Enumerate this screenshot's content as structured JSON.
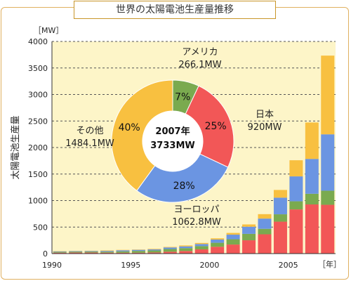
{
  "colors": {
    "japan": "#f25757",
    "usa": "#7aaa4f",
    "europe": "#6b95e2",
    "other": "#f8c040",
    "plot_bg": "#fdf5c8",
    "frame": "#e0b060"
  },
  "chart_data": {
    "type": "bar",
    "title": "世界の太陽電池生産量推移",
    "ylabel": "太陽電池生産量",
    "yunit": "［MW］",
    "xunit": "［年］",
    "ylim": [
      0,
      4000
    ],
    "yticks": [
      0,
      500,
      1000,
      1500,
      2000,
      2500,
      3000,
      3500,
      4000
    ],
    "xtick_labels": [
      "1990",
      "1995",
      "2000",
      "2005"
    ],
    "grid": true,
    "categories": [
      "1990",
      "1991",
      "1992",
      "1993",
      "1994",
      "1995",
      "1996",
      "1997",
      "1998",
      "1999",
      "2000",
      "2001",
      "2002",
      "2003",
      "2004",
      "2005",
      "2006",
      "2007"
    ],
    "series": [
      {
        "key": "japan",
        "values": [
          17,
          19,
          19,
          17,
          16,
          16,
          21,
          35,
          49,
          80,
          129,
          171,
          251,
          364,
          602,
          833,
          927,
          920
        ]
      },
      {
        "key": "usa",
        "values": [
          15,
          17,
          18,
          18,
          26,
          35,
          39,
          51,
          54,
          61,
          75,
          100,
          121,
          103,
          139,
          153,
          201,
          266
        ]
      },
      {
        "key": "europe",
        "values": [
          10,
          10,
          12,
          16,
          21,
          20,
          19,
          30,
          33,
          40,
          61,
          86,
          135,
          193,
          314,
          470,
          657,
          1063
        ]
      },
      {
        "key": "other",
        "values": [
          5,
          4,
          5,
          9,
          7,
          6,
          10,
          10,
          18,
          20,
          23,
          33,
          43,
          84,
          145,
          304,
          687,
          1484
        ]
      }
    ],
    "pie": {
      "center_year": "2007年",
      "center_total": "3733MW",
      "slices": [
        {
          "key": "usa",
          "name": "アメリカ",
          "value_label": "266.1MW",
          "percent_label": "7%",
          "value": 7
        },
        {
          "key": "japan",
          "name": "日本",
          "value_label": "920MW",
          "percent_label": "25%",
          "value": 25
        },
        {
          "key": "europe",
          "name": "ヨーロッパ",
          "value_label": "1062.8MW",
          "percent_label": "28%",
          "value": 28
        },
        {
          "key": "other",
          "name": "その他",
          "value_label": "1484.1MW",
          "percent_label": "40%",
          "value": 40
        }
      ]
    }
  }
}
